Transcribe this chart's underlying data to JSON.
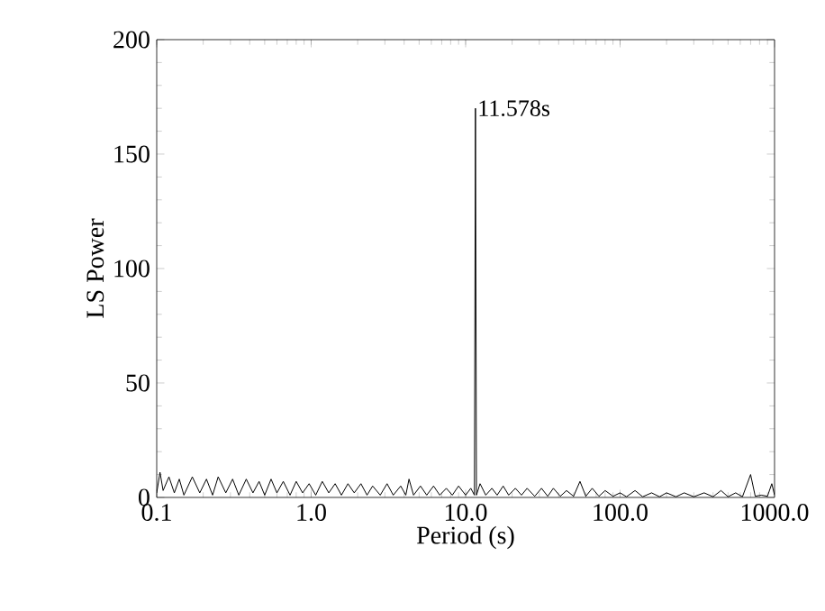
{
  "chart_data": {
    "type": "line",
    "xlabel": "Period (s)",
    "ylabel": "LS Power",
    "log": "x",
    "xlim": [
      0.1,
      1000
    ],
    "ylim": [
      0,
      200
    ],
    "xticks": [
      0.1,
      {
        "value": 1,
        "label": "1.0"
      },
      {
        "value": 10,
        "label": "10.0"
      },
      {
        "value": 100,
        "label": "100.0"
      },
      {
        "value": 1000,
        "label": "1000.0"
      }
    ],
    "yticks": [
      0,
      50,
      100,
      150,
      200
    ],
    "annotations": [
      {
        "text": "11.578s",
        "x": 11.578,
        "y": 170
      }
    ],
    "series": [
      {
        "color": "#000000",
        "x": [
          0.1,
          0.105,
          0.11,
          0.12,
          0.13,
          0.14,
          0.15,
          0.17,
          0.19,
          0.21,
          0.23,
          0.25,
          0.28,
          0.31,
          0.34,
          0.38,
          0.42,
          0.46,
          0.5,
          0.55,
          0.6,
          0.66,
          0.73,
          0.8,
          0.88,
          0.97,
          1.07,
          1.18,
          1.3,
          1.43,
          1.57,
          1.73,
          1.9,
          2.1,
          2.3,
          2.5,
          2.8,
          3.1,
          3.4,
          3.8,
          4.1,
          4.3,
          4.6,
          5.1,
          5.6,
          6.2,
          6.8,
          7.5,
          8.2,
          9,
          10,
          10.8,
          11.4,
          11.578,
          11.75,
          12.4,
          13.5,
          14.8,
          16,
          17.5,
          19,
          21,
          23,
          25,
          28,
          31,
          34,
          37,
          41,
          45,
          50,
          55,
          60,
          66,
          73,
          80,
          90,
          100,
          110,
          125,
          140,
          160,
          180,
          200,
          230,
          260,
          300,
          350,
          400,
          450,
          500,
          560,
          620,
          700,
          750,
          820,
          900,
          960,
          1000
        ],
        "values": [
          2,
          11,
          3,
          9,
          2,
          8,
          1,
          9,
          2,
          8,
          1,
          9,
          2,
          8,
          1,
          8,
          2,
          7,
          1,
          8,
          2,
          7,
          1,
          7,
          2,
          6,
          1,
          7,
          2,
          6,
          1,
          6,
          2,
          6,
          1,
          5,
          1,
          6,
          1,
          5,
          1,
          8,
          1,
          5,
          1,
          5,
          1,
          4,
          1,
          5,
          1,
          4,
          1,
          170,
          1,
          6,
          1,
          4,
          1,
          5,
          1,
          4,
          1,
          4,
          0.5,
          4,
          0.5,
          4,
          0.5,
          3,
          0.5,
          7,
          0.5,
          4,
          0.5,
          3,
          0.5,
          2,
          0.3,
          3,
          0.3,
          2,
          0.3,
          2,
          0.3,
          2,
          0.3,
          2,
          0.3,
          3,
          0.3,
          2,
          0.3,
          10,
          0.5,
          1,
          0.5,
          6,
          1
        ]
      }
    ]
  }
}
